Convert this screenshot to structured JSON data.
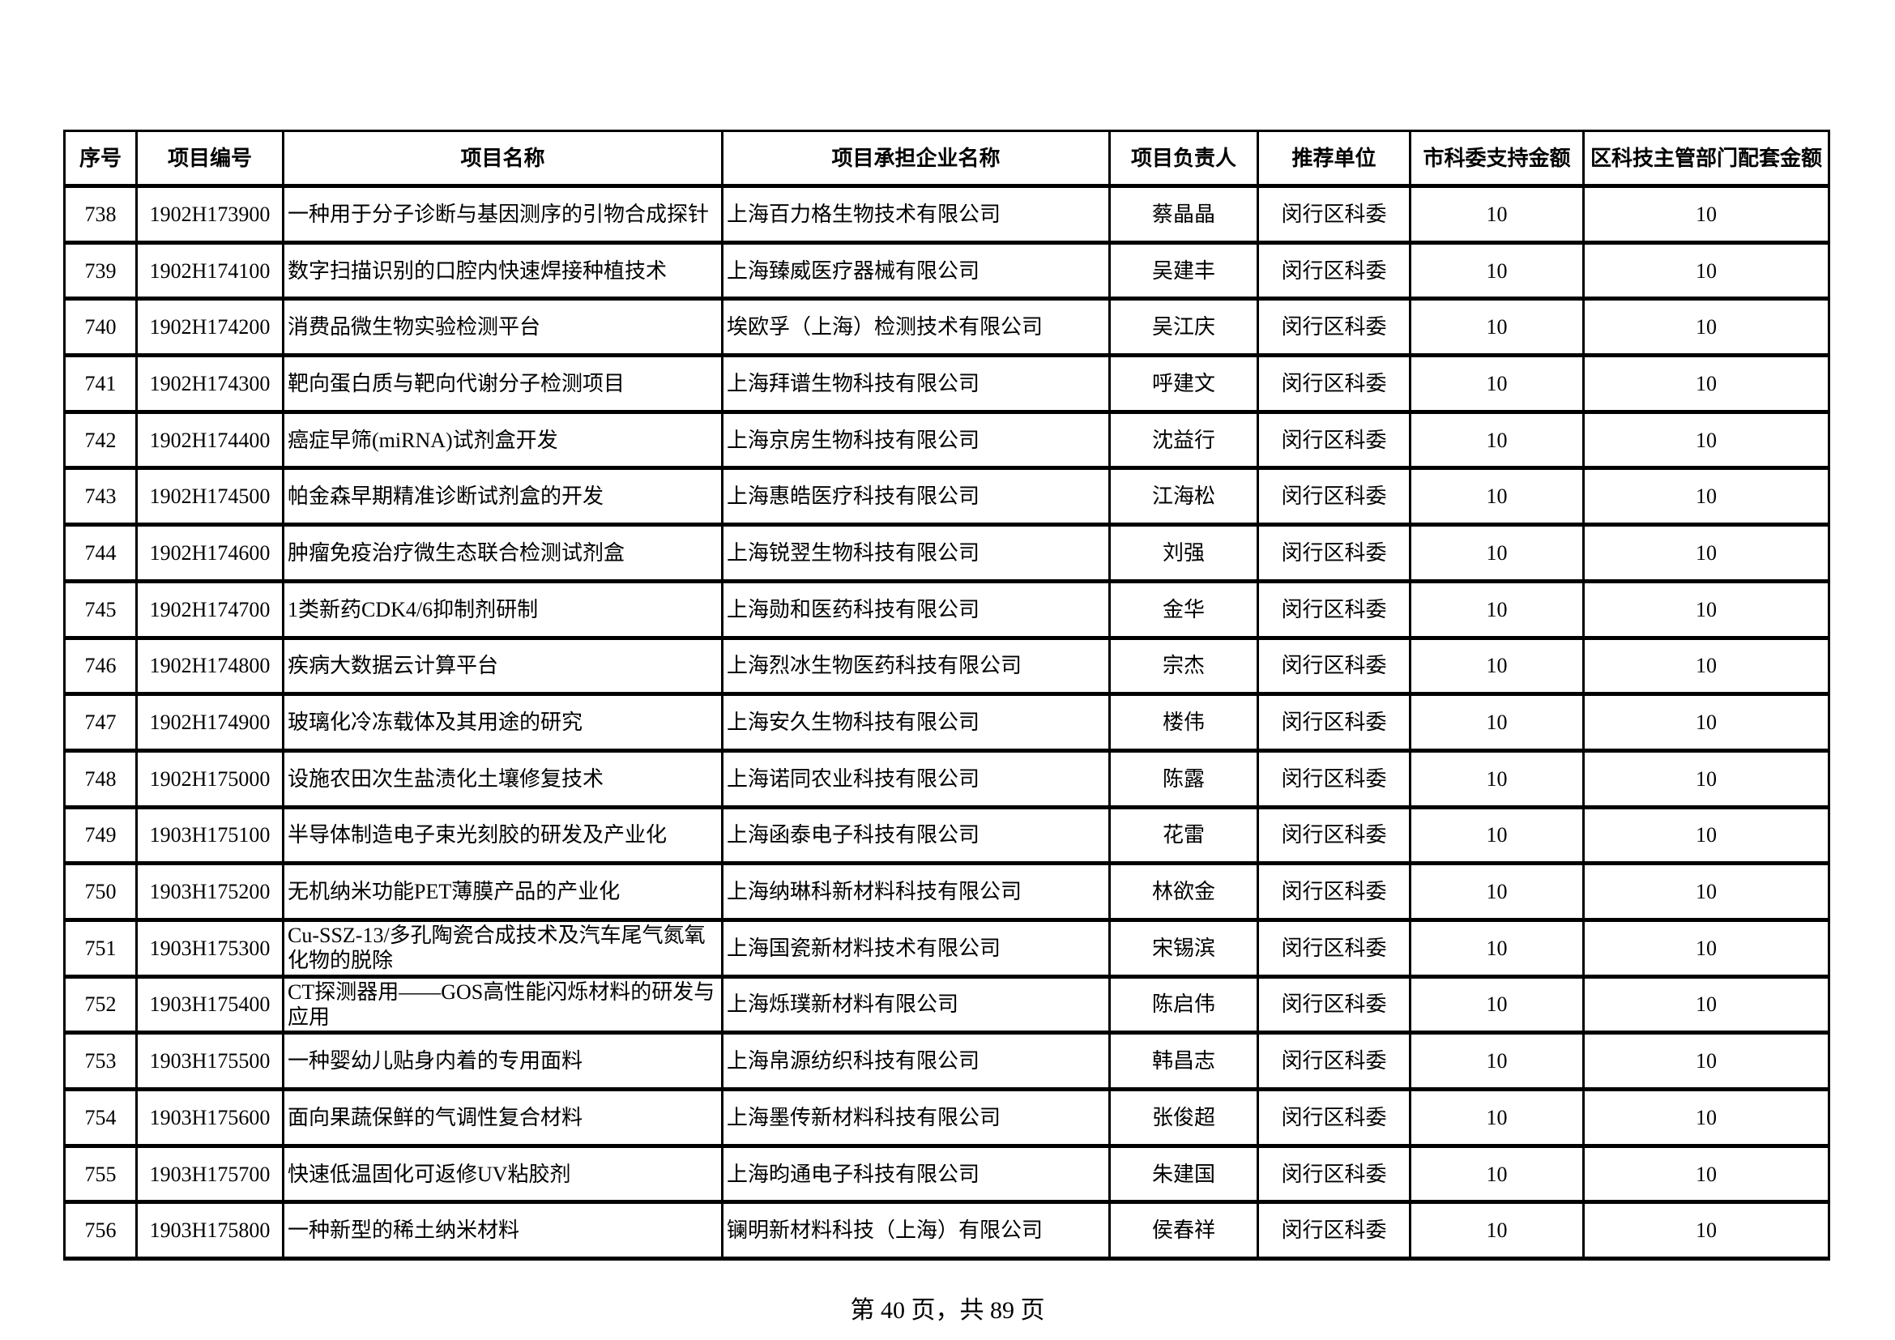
{
  "table": {
    "headers": [
      "序号",
      "项目编号",
      "项目名称",
      "项目承担企业名称",
      "项目负责人",
      "推荐单位",
      "市科委支持金额",
      "区科技主管部门配套金额"
    ],
    "rows": [
      [
        "738",
        "1902H173900",
        "一种用于分子诊断与基因测序的引物合成探针",
        "上海百力格生物技术有限公司",
        "蔡晶晶",
        "闵行区科委",
        "10",
        "10"
      ],
      [
        "739",
        "1902H174100",
        "数字扫描识别的口腔内快速焊接种植技术",
        "上海臻威医疗器械有限公司",
        "吴建丰",
        "闵行区科委",
        "10",
        "10"
      ],
      [
        "740",
        "1902H174200",
        "消费品微生物实验检测平台",
        "埃欧孚（上海）检测技术有限公司",
        "吴江庆",
        "闵行区科委",
        "10",
        "10"
      ],
      [
        "741",
        "1902H174300",
        "靶向蛋白质与靶向代谢分子检测项目",
        "上海拜谱生物科技有限公司",
        "呼建文",
        "闵行区科委",
        "10",
        "10"
      ],
      [
        "742",
        "1902H174400",
        "癌症早筛(miRNA)试剂盒开发",
        "上海京房生物科技有限公司",
        "沈益行",
        "闵行区科委",
        "10",
        "10"
      ],
      [
        "743",
        "1902H174500",
        "帕金森早期精准诊断试剂盒的开发",
        "上海惠皓医疗科技有限公司",
        "江海松",
        "闵行区科委",
        "10",
        "10"
      ],
      [
        "744",
        "1902H174600",
        "肿瘤免疫治疗微生态联合检测试剂盒",
        "上海锐翌生物科技有限公司",
        "刘强",
        "闵行区科委",
        "10",
        "10"
      ],
      [
        "745",
        "1902H174700",
        "1类新药CDK4/6抑制剂研制",
        "上海勋和医药科技有限公司",
        "金华",
        "闵行区科委",
        "10",
        "10"
      ],
      [
        "746",
        "1902H174800",
        "疾病大数据云计算平台",
        "上海烈冰生物医药科技有限公司",
        "宗杰",
        "闵行区科委",
        "10",
        "10"
      ],
      [
        "747",
        "1902H174900",
        "玻璃化冷冻载体及其用途的研究",
        "上海安久生物科技有限公司",
        "楼伟",
        "闵行区科委",
        "10",
        "10"
      ],
      [
        "748",
        "1902H175000",
        "设施农田次生盐渍化土壤修复技术",
        "上海诺同农业科技有限公司",
        "陈露",
        "闵行区科委",
        "10",
        "10"
      ],
      [
        "749",
        "1903H175100",
        "半导体制造电子束光刻胶的研发及产业化",
        "上海函泰电子科技有限公司",
        "花雷",
        "闵行区科委",
        "10",
        "10"
      ],
      [
        "750",
        "1903H175200",
        "无机纳米功能PET薄膜产品的产业化",
        "上海纳琳科新材料科技有限公司",
        "林欲金",
        "闵行区科委",
        "10",
        "10"
      ],
      [
        "751",
        "1903H175300",
        "Cu-SSZ-13/多孔陶瓷合成技术及汽车尾气氮氧化物的脱除",
        "上海国瓷新材料技术有限公司",
        "宋锡滨",
        "闵行区科委",
        "10",
        "10"
      ],
      [
        "752",
        "1903H175400",
        "CT探测器用——GOS高性能闪烁材料的研发与应用",
        "上海烁璞新材料有限公司",
        "陈启伟",
        "闵行区科委",
        "10",
        "10"
      ],
      [
        "753",
        "1903H175500",
        "一种婴幼儿贴身内着的专用面料",
        "上海帛源纺织科技有限公司",
        "韩昌志",
        "闵行区科委",
        "10",
        "10"
      ],
      [
        "754",
        "1903H175600",
        "面向果蔬保鲜的气调性复合材料",
        "上海墨传新材料科技有限公司",
        "张俊超",
        "闵行区科委",
        "10",
        "10"
      ],
      [
        "755",
        "1903H175700",
        "快速低温固化可返修UV粘胶剂",
        "上海昀通电子科技有限公司",
        "朱建国",
        "闵行区科委",
        "10",
        "10"
      ],
      [
        "756",
        "1903H175800",
        "一种新型的稀土纳米材料",
        "镧明新材料科技（上海）有限公司",
        "侯春祥",
        "闵行区科委",
        "10",
        "10"
      ]
    ]
  },
  "footer": {
    "page_label": "第 40 页，共 89 页"
  }
}
